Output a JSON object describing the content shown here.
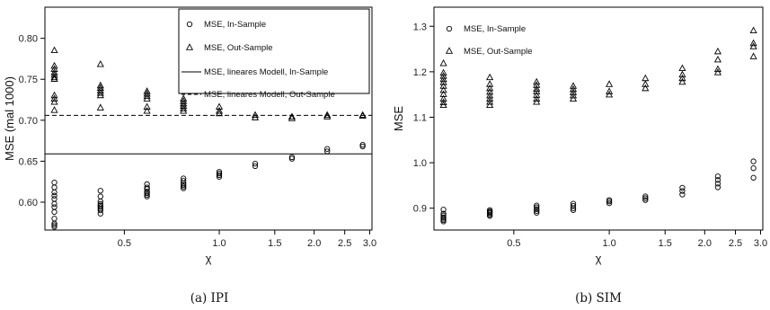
{
  "chart_data": [
    {
      "type": "scatter",
      "caption": "(a) IPI",
      "xlabel": "χ",
      "ylabel": "MSE (mal 1000)",
      "xscale": "log",
      "xlim": [
        0.28,
        3.05
      ],
      "ylim": [
        0.566,
        0.838
      ],
      "xticks": [
        0.5,
        1.0,
        1.5,
        2.0,
        2.5,
        3.0
      ],
      "xtick_labels": [
        "0.5",
        "1.0",
        "1.5",
        "2.0",
        "2.5",
        "3.0"
      ],
      "yticks": [
        0.6,
        0.65,
        0.7,
        0.75,
        0.8
      ],
      "ytick_labels": [
        "0.60",
        "0.65",
        "0.70",
        "0.75",
        "0.80"
      ],
      "legend_position": "top-right",
      "legend": [
        {
          "label": "MSE, In-Sample",
          "marker": "circle"
        },
        {
          "label": "MSE, Out-Sample",
          "marker": "triangle"
        },
        {
          "label": "MSE, lineares Modell, In-Sample",
          "line": "solid"
        },
        {
          "label": "MSE, lineares Modell, Out-Sample",
          "line": "dashed"
        }
      ],
      "hlines": [
        {
          "name": "MSE, lineares Modell, In-Sample",
          "y": 0.659,
          "style": "solid"
        },
        {
          "name": "MSE, lineares Modell, Out-Sample",
          "y": 0.706,
          "style": "dashed"
        }
      ],
      "series": [
        {
          "name": "MSE, In-Sample",
          "marker": "circle",
          "x": [
            0.3,
            0.3,
            0.3,
            0.3,
            0.3,
            0.3,
            0.3,
            0.3,
            0.3,
            0.3,
            0.3,
            0.3,
            0.42,
            0.42,
            0.42,
            0.42,
            0.42,
            0.42,
            0.42,
            0.42,
            0.42,
            0.59,
            0.59,
            0.59,
            0.59,
            0.59,
            0.59,
            0.59,
            0.77,
            0.77,
            0.77,
            0.77,
            0.77,
            0.77,
            1.0,
            1.0,
            1.0,
            1.0,
            1.3,
            1.3,
            1.7,
            1.7,
            2.2,
            2.2,
            2.85,
            2.85
          ],
          "y": [
            0.624,
            0.618,
            0.612,
            0.608,
            0.604,
            0.598,
            0.594,
            0.588,
            0.58,
            0.574,
            0.572,
            0.57,
            0.614,
            0.607,
            0.601,
            0.598,
            0.596,
            0.594,
            0.592,
            0.59,
            0.586,
            0.622,
            0.618,
            0.616,
            0.613,
            0.611,
            0.609,
            0.607,
            0.629,
            0.626,
            0.623,
            0.621,
            0.619,
            0.617,
            0.637,
            0.635,
            0.633,
            0.631,
            0.647,
            0.644,
            0.655,
            0.653,
            0.665,
            0.662,
            0.67,
            0.668
          ]
        },
        {
          "name": "MSE, Out-Sample",
          "marker": "triangle",
          "x": [
            0.3,
            0.3,
            0.3,
            0.3,
            0.3,
            0.3,
            0.3,
            0.3,
            0.3,
            0.3,
            0.3,
            0.42,
            0.42,
            0.42,
            0.42,
            0.42,
            0.42,
            0.42,
            0.59,
            0.59,
            0.59,
            0.59,
            0.59,
            0.59,
            0.77,
            0.77,
            0.77,
            0.77,
            0.77,
            0.77,
            1.0,
            1.0,
            1.0,
            1.3,
            1.3,
            1.7,
            1.7,
            2.2,
            2.2,
            2.85,
            2.85
          ],
          "y": [
            0.785,
            0.766,
            0.762,
            0.758,
            0.755,
            0.752,
            0.75,
            0.73,
            0.726,
            0.722,
            0.712,
            0.768,
            0.742,
            0.739,
            0.736,
            0.733,
            0.73,
            0.715,
            0.735,
            0.732,
            0.729,
            0.726,
            0.716,
            0.711,
            0.726,
            0.723,
            0.72,
            0.717,
            0.714,
            0.711,
            0.716,
            0.711,
            0.708,
            0.706,
            0.703,
            0.704,
            0.702,
            0.706,
            0.704,
            0.706,
            0.705
          ]
        }
      ]
    },
    {
      "type": "scatter",
      "caption": "(b) SIM",
      "xlabel": "χ",
      "ylabel": "MSE",
      "xscale": "log",
      "xlim": [
        0.28,
        3.05
      ],
      "ylim": [
        0.852,
        1.342
      ],
      "xticks": [
        0.5,
        1.0,
        1.5,
        2.0,
        2.5,
        3.0
      ],
      "xtick_labels": [
        "0.5",
        "1.0",
        "1.5",
        "2.0",
        "2.5",
        "3.0"
      ],
      "yticks": [
        0.9,
        1.0,
        1.1,
        1.2,
        1.3
      ],
      "ytick_labels": [
        "0.9",
        "1.0",
        "1.1",
        "1.2",
        "1.3"
      ],
      "legend_position": "top-left",
      "legend": [
        {
          "label": "MSE, In-Sample",
          "marker": "circle"
        },
        {
          "label": "MSE, Out-Sample",
          "marker": "triangle"
        }
      ],
      "series": [
        {
          "name": "MSE, In-Sample",
          "marker": "circle",
          "x": [
            0.3,
            0.3,
            0.3,
            0.3,
            0.3,
            0.3,
            0.3,
            0.42,
            0.42,
            0.42,
            0.42,
            0.42,
            0.42,
            0.59,
            0.59,
            0.59,
            0.59,
            0.59,
            0.77,
            0.77,
            0.77,
            0.77,
            1.0,
            1.0,
            1.0,
            1.3,
            1.3,
            1.3,
            1.7,
            1.7,
            1.7,
            2.2,
            2.2,
            2.2,
            2.2,
            2.85,
            2.85,
            2.85
          ],
          "y": [
            0.897,
            0.888,
            0.884,
            0.88,
            0.877,
            0.874,
            0.871,
            0.896,
            0.893,
            0.891,
            0.889,
            0.886,
            0.883,
            0.906,
            0.902,
            0.898,
            0.894,
            0.89,
            0.91,
            0.905,
            0.9,
            0.896,
            0.918,
            0.915,
            0.911,
            0.926,
            0.922,
            0.918,
            0.945,
            0.938,
            0.93,
            0.97,
            0.962,
            0.954,
            0.946,
            1.003,
            0.988,
            0.967
          ]
        },
        {
          "name": "MSE, Out-Sample",
          "marker": "triangle",
          "x": [
            0.3,
            0.3,
            0.3,
            0.3,
            0.3,
            0.3,
            0.3,
            0.3,
            0.3,
            0.3,
            0.3,
            0.42,
            0.42,
            0.42,
            0.42,
            0.42,
            0.42,
            0.42,
            0.42,
            0.59,
            0.59,
            0.59,
            0.59,
            0.59,
            0.59,
            0.59,
            0.77,
            0.77,
            0.77,
            0.77,
            0.77,
            1.0,
            1.0,
            1.0,
            1.3,
            1.3,
            1.3,
            1.7,
            1.7,
            1.7,
            1.7,
            2.2,
            2.2,
            2.2,
            2.2,
            2.85,
            2.85,
            2.85,
            2.85
          ],
          "y": [
            1.218,
            1.197,
            1.19,
            1.183,
            1.176,
            1.168,
            1.159,
            1.15,
            1.14,
            1.132,
            1.126,
            1.187,
            1.172,
            1.163,
            1.155,
            1.147,
            1.14,
            1.133,
            1.126,
            1.177,
            1.17,
            1.162,
            1.156,
            1.148,
            1.14,
            1.133,
            1.168,
            1.161,
            1.154,
            1.147,
            1.14,
            1.172,
            1.156,
            1.149,
            1.185,
            1.172,
            1.163,
            1.207,
            1.193,
            1.185,
            1.177,
            1.244,
            1.226,
            1.205,
            1.198,
            1.29,
            1.262,
            1.255,
            1.233
          ]
        }
      ]
    }
  ]
}
